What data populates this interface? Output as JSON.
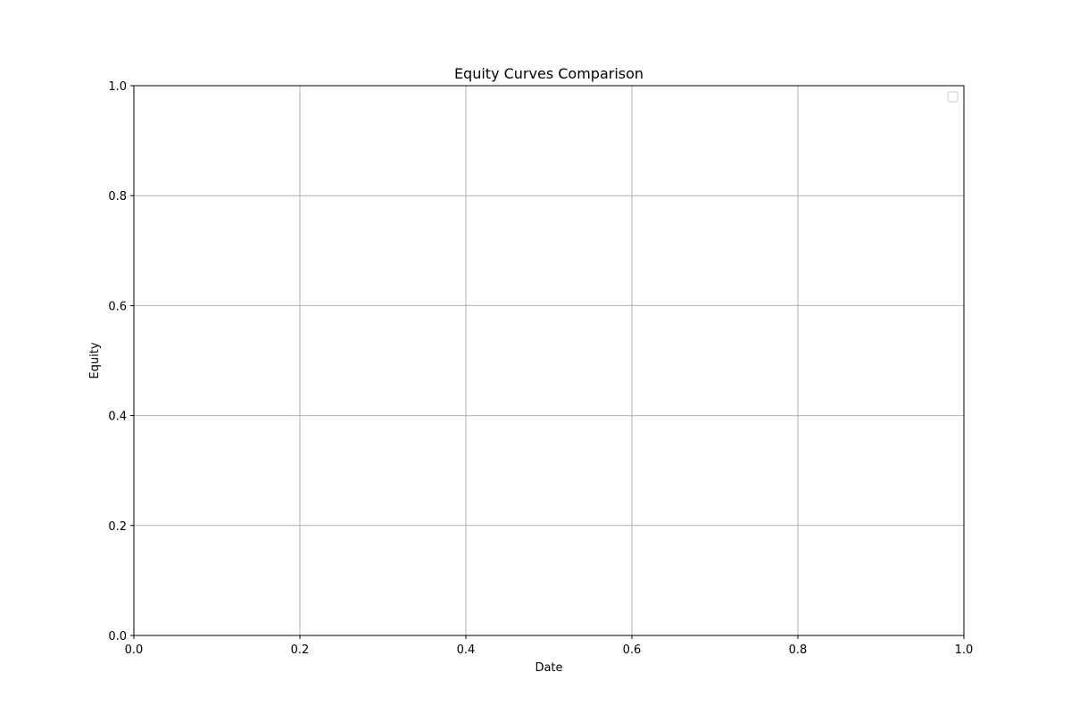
{
  "chart_data": {
    "type": "line",
    "title": "Equity Curves Comparison",
    "xlabel": "Date",
    "ylabel": "Equity",
    "xlim": [
      0.0,
      1.0
    ],
    "ylim": [
      0.0,
      1.0
    ],
    "x_ticks": [
      "0.0",
      "0.2",
      "0.4",
      "0.6",
      "0.8",
      "1.0"
    ],
    "y_ticks": [
      "0.0",
      "0.2",
      "0.4",
      "0.6",
      "0.8",
      "1.0"
    ],
    "series": [],
    "grid": true,
    "legend": {
      "placement": "upper right",
      "entries": []
    },
    "colors": {
      "grid": "#b0b0b0",
      "axes": "#000000",
      "legend_border": "#cccccc",
      "background": "#ffffff"
    }
  }
}
